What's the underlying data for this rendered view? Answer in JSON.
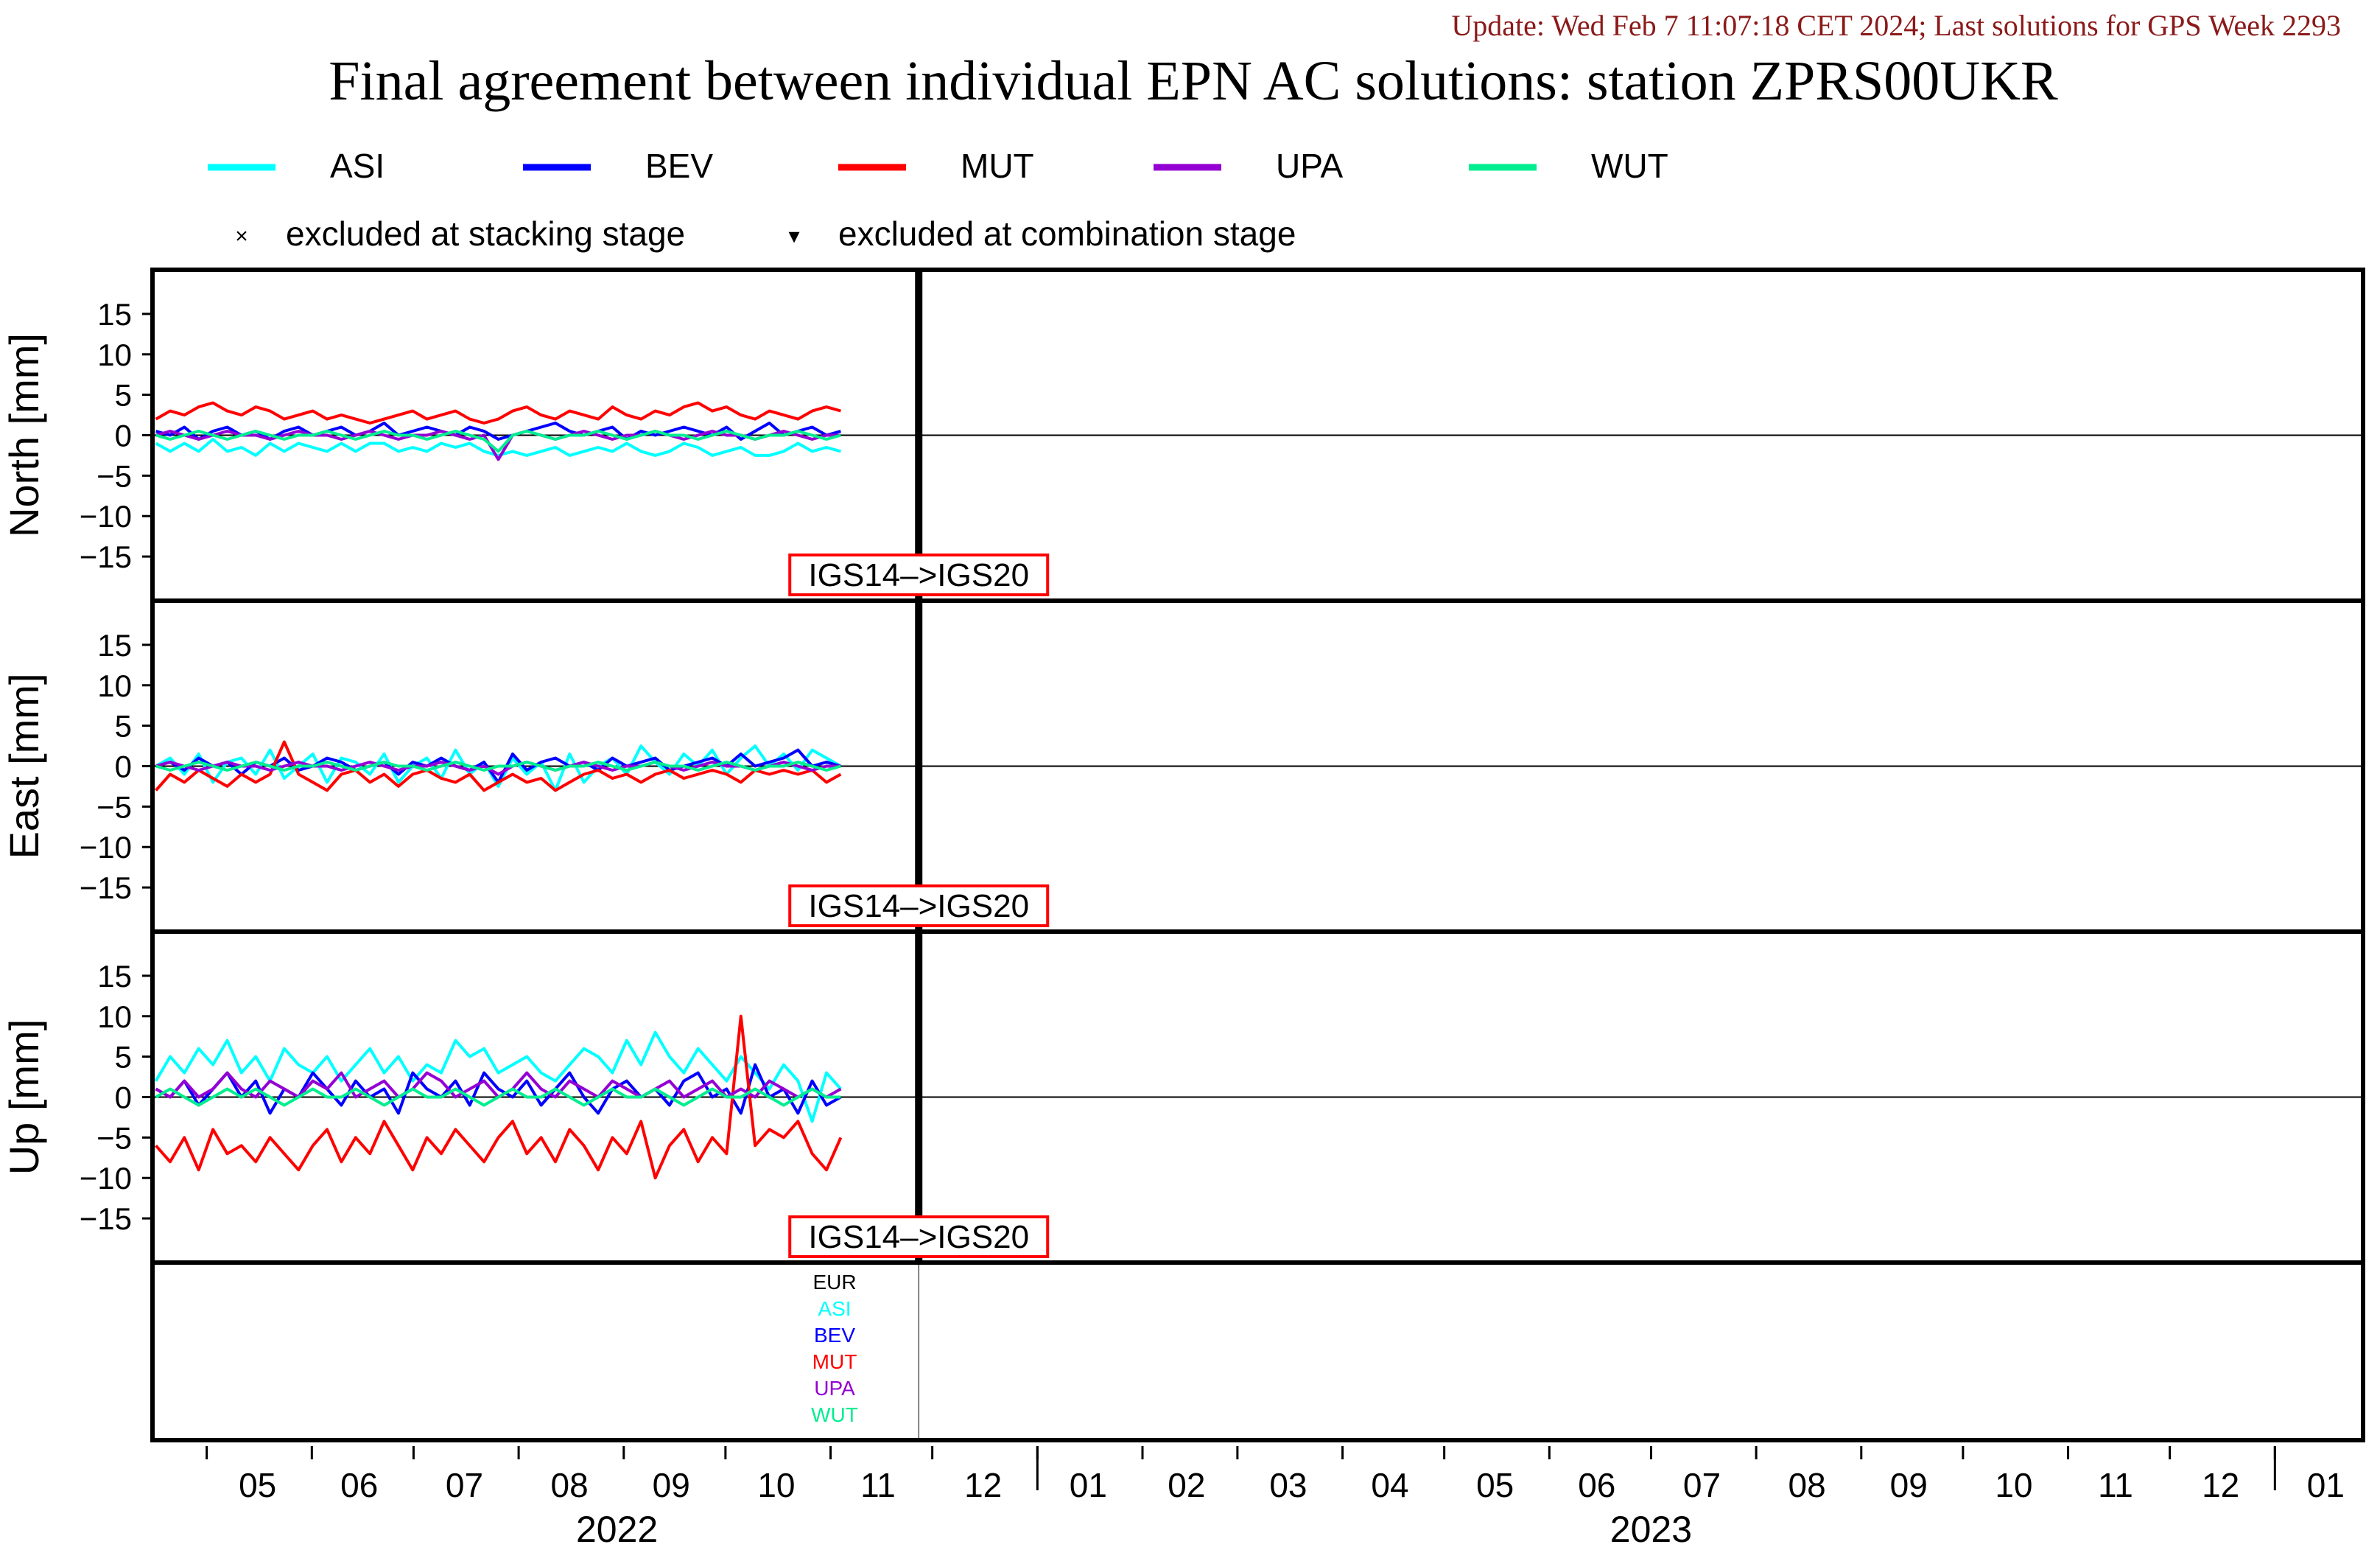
{
  "update_text": "Update: Wed Feb  7 11:07:18 CET 2024; Last solutions for GPS Week 2293",
  "colors": {
    "update": "#8b1a1a",
    "ASI": "#00ffff",
    "BEV": "#0000ff",
    "MUT": "#ff0000",
    "UPA": "#9400d3",
    "WUT": "#00ee90",
    "EUR": "#000000",
    "frame_box": "#ff0000"
  },
  "chart_data": {
    "type": "line",
    "title": "Final agreement between individual EPN AC solutions: station ZPRS00UKR",
    "legend": {
      "placement": "top",
      "series": [
        "ASI",
        "BEV",
        "MUT",
        "UPA",
        "WUT"
      ],
      "markers": [
        {
          "symbol": "×",
          "label": "excluded at stacking stage"
        },
        {
          "symbol": "▾",
          "label": "excluded at combination stage"
        }
      ]
    },
    "x_axis": {
      "type": "time",
      "range": [
        "2022-04-15",
        "2024-01-27"
      ],
      "month_labels": [
        {
          "date": "2022-05-16",
          "label": "05"
        },
        {
          "date": "2022-06-15",
          "label": "06"
        },
        {
          "date": "2022-07-16",
          "label": "07"
        },
        {
          "date": "2022-08-16",
          "label": "08"
        },
        {
          "date": "2022-09-15",
          "label": "09"
        },
        {
          "date": "2022-10-16",
          "label": "10"
        },
        {
          "date": "2022-11-15",
          "label": "11"
        },
        {
          "date": "2022-12-16",
          "label": "12"
        },
        {
          "date": "2023-01-16",
          "label": "01"
        },
        {
          "date": "2023-02-14",
          "label": "02"
        },
        {
          "date": "2023-03-16",
          "label": "03"
        },
        {
          "date": "2023-04-15",
          "label": "04"
        },
        {
          "date": "2023-05-16",
          "label": "05"
        },
        {
          "date": "2023-06-15",
          "label": "06"
        },
        {
          "date": "2023-07-16",
          "label": "07"
        },
        {
          "date": "2023-08-16",
          "label": "08"
        },
        {
          "date": "2023-09-15",
          "label": "09"
        },
        {
          "date": "2023-10-16",
          "label": "10"
        },
        {
          "date": "2023-11-15",
          "label": "11"
        },
        {
          "date": "2023-12-16",
          "label": "12"
        },
        {
          "date": "2024-01-16",
          "label": "01"
        }
      ],
      "year_labels": [
        {
          "date": "2022-08-30",
          "label": "2022"
        },
        {
          "date": "2023-07-01",
          "label": "2023"
        }
      ],
      "year_boundaries": [
        "2023-01-01",
        "2024-01-01"
      ]
    },
    "reference_frame_change": {
      "date": "2022-11-27",
      "label": "IGS14–>IGS20"
    },
    "series_dates": [
      "2022-04-16",
      "2022-11-04"
    ],
    "panels": [
      {
        "ylabel": "North [mm]",
        "ylim": [
          -19,
          19
        ],
        "yticks": [
          15,
          10,
          5,
          0,
          -5,
          -10,
          -15
        ],
        "series": [
          {
            "name": "ASI",
            "values": [
              -1,
              -2,
              -1,
              -2,
              -0.5,
              -2,
              -1.5,
              -2.5,
              -1,
              -2,
              -1,
              -1.5,
              -2,
              -1,
              -2,
              -1,
              -1,
              -2,
              -1.5,
              -2,
              -1,
              -1.5,
              -1,
              -2,
              -2.5,
              -2,
              -2.5,
              -2,
              -1.5,
              -2.5,
              -2,
              -1.5,
              -2,
              -1,
              -2,
              -2.5,
              -2,
              -1,
              -1.5,
              -2.5,
              -2,
              -1.5,
              -2.5,
              -2.5,
              -2,
              -1,
              -2,
              -1.5,
              -2
            ]
          },
          {
            "name": "BEV",
            "values": [
              0.5,
              0,
              1,
              -0.5,
              0.5,
              1,
              0,
              0.5,
              -0.5,
              0.5,
              1,
              0,
              0.5,
              1,
              0,
              0.5,
              1.5,
              0,
              0.5,
              1,
              0.5,
              0,
              1,
              0.5,
              -0.5,
              0,
              0.5,
              1,
              1.5,
              0.5,
              0,
              0.5,
              1,
              -0.5,
              0.5,
              0,
              0.5,
              1,
              0.5,
              0,
              1,
              -0.5,
              0.5,
              1.5,
              0,
              0.5,
              1,
              0,
              0.5
            ]
          },
          {
            "name": "MUT",
            "values": [
              2,
              3,
              2.5,
              3.5,
              4,
              3,
              2.5,
              3.5,
              3,
              2,
              2.5,
              3,
              2,
              2.5,
              2,
              1.5,
              2,
              2.5,
              3,
              2,
              2.5,
              3,
              2,
              1.5,
              2,
              3,
              3.5,
              2.5,
              2,
              3,
              2.5,
              2,
              3.5,
              2.5,
              2,
              3,
              2.5,
              3.5,
              4,
              3,
              3.5,
              2.5,
              2,
              3,
              2.5,
              2,
              3,
              3.5,
              3
            ]
          },
          {
            "name": "UPA",
            "values": [
              0,
              0.5,
              0,
              -0.5,
              0,
              0.5,
              0,
              0,
              -0.5,
              0,
              0.5,
              0,
              0,
              -0.5,
              0,
              0.5,
              0,
              -0.5,
              0,
              0,
              0.5,
              0,
              -0.5,
              0,
              -3,
              0,
              0.5,
              0,
              -0.5,
              0,
              0.5,
              0,
              -0.5,
              0,
              0,
              0.5,
              0,
              -0.5,
              0,
              0.5,
              0,
              0,
              -0.5,
              0,
              0.5,
              0,
              -0.5,
              0,
              0
            ]
          },
          {
            "name": "WUT",
            "values": [
              0,
              -0.5,
              0,
              0.5,
              0,
              -0.5,
              0,
              0.5,
              0,
              -0.5,
              0,
              0,
              0.5,
              0,
              -0.5,
              0,
              0.5,
              0,
              0,
              -0.5,
              0,
              0.5,
              0,
              -0.5,
              -2,
              0,
              0.5,
              0,
              -0.5,
              0,
              0,
              0.5,
              0,
              -0.5,
              0,
              0.5,
              0,
              0,
              -0.5,
              0,
              0.5,
              0,
              -0.5,
              0,
              0,
              0.5,
              0,
              -0.5,
              0
            ]
          }
        ]
      },
      {
        "ylabel": "East [mm]",
        "ylim": [
          -19,
          19
        ],
        "yticks": [
          15,
          10,
          5,
          0,
          -5,
          -10,
          -15
        ],
        "series": [
          {
            "name": "ASI",
            "values": [
              0,
              1,
              -1,
              1.5,
              -2,
              0.5,
              1,
              -1,
              2,
              -1.5,
              0,
              1.5,
              -2,
              1,
              0.5,
              -1,
              1.5,
              -2,
              0,
              1,
              -1.5,
              2,
              -1,
              0.5,
              -2.5,
              1,
              -1,
              0.5,
              -3,
              1.5,
              -2,
              0,
              1,
              -1,
              2.5,
              0.5,
              -1,
              1.5,
              0,
              2,
              -1,
              1,
              2.5,
              0,
              1.5,
              -0.5,
              2,
              1,
              0
            ]
          },
          {
            "name": "BEV",
            "values": [
              0,
              0.5,
              -0.5,
              1,
              0,
              0.5,
              -1,
              0.5,
              0,
              1,
              -0.5,
              0,
              1,
              0.5,
              -0.5,
              0,
              0.5,
              -1,
              0.5,
              0,
              1,
              0,
              -0.5,
              0.5,
              -2,
              1.5,
              -0.5,
              0.5,
              1,
              0,
              0.5,
              -0.5,
              1,
              0,
              0.5,
              1,
              -0.5,
              0,
              0.5,
              1,
              0,
              1.5,
              0,
              0.5,
              1,
              2,
              0,
              0.5,
              0
            ]
          },
          {
            "name": "MUT",
            "values": [
              -3,
              -1,
              -2,
              -0.5,
              -1.5,
              -2.5,
              -1,
              -2,
              -1,
              3,
              -1,
              -2,
              -3,
              -1,
              -0.5,
              -2,
              -1,
              -2.5,
              -1,
              -0.5,
              -1.5,
              -2,
              -1,
              -3,
              -2,
              -1,
              -2,
              -1.5,
              -3,
              -2,
              -1,
              -0.5,
              -1.5,
              -1,
              -2,
              -1,
              -0.5,
              -1.5,
              -1,
              -0.5,
              -1,
              -2,
              -0.5,
              -1,
              -0.5,
              -1,
              -0.5,
              -2,
              -1
            ]
          },
          {
            "name": "UPA",
            "values": [
              0,
              0.5,
              0,
              -0.5,
              0,
              0.5,
              0,
              0,
              -0.5,
              0,
              0.5,
              0,
              0,
              -0.5,
              0,
              0.5,
              0,
              -0.5,
              0,
              0,
              0.5,
              0,
              -0.5,
              0,
              -1,
              0,
              0.5,
              0,
              -0.5,
              0,
              0.5,
              0,
              -0.5,
              0,
              0,
              0.5,
              0,
              -0.5,
              0,
              0.5,
              0,
              0,
              -0.5,
              0,
              0.5,
              0,
              -0.5,
              0,
              0
            ]
          },
          {
            "name": "WUT",
            "values": [
              0,
              -0.5,
              0,
              0.5,
              0,
              -0.5,
              0,
              0.5,
              0,
              -0.5,
              0,
              0,
              0.5,
              0,
              -0.5,
              0,
              0.5,
              0,
              0,
              -0.5,
              0,
              0.5,
              0,
              -0.5,
              0,
              0,
              0.5,
              0,
              -0.5,
              0,
              0,
              0.5,
              0,
              -0.5,
              0,
              0.5,
              0,
              0,
              -0.5,
              0,
              0.5,
              0,
              -0.5,
              0,
              0,
              0.5,
              0,
              -0.5,
              0
            ]
          }
        ]
      },
      {
        "ylabel": "Up [mm]",
        "ylim": [
          -19,
          19
        ],
        "yticks": [
          15,
          10,
          5,
          0,
          -5,
          -10,
          -15
        ],
        "series": [
          {
            "name": "ASI",
            "values": [
              2,
              5,
              3,
              6,
              4,
              7,
              3,
              5,
              2,
              6,
              4,
              3,
              5,
              2,
              4,
              6,
              3,
              5,
              2,
              4,
              3,
              7,
              5,
              6,
              3,
              4,
              5,
              3,
              2,
              4,
              6,
              5,
              3,
              7,
              4,
              8,
              5,
              3,
              6,
              4,
              2,
              5,
              3,
              1,
              4,
              2,
              -3,
              3,
              1
            ]
          },
          {
            "name": "BEV",
            "values": [
              1,
              0,
              2,
              -1,
              1,
              3,
              0,
              2,
              -2,
              1,
              0,
              3,
              1,
              -1,
              2,
              0,
              1,
              -2,
              3,
              1,
              0,
              2,
              -1,
              3,
              1,
              0,
              2,
              -1,
              1,
              3,
              0,
              -2,
              1,
              2,
              0,
              1,
              -1,
              2,
              3,
              0,
              1,
              -2,
              4,
              0,
              1,
              -2,
              2,
              -1,
              0
            ]
          },
          {
            "name": "MUT",
            "values": [
              -6,
              -8,
              -5,
              -9,
              -4,
              -7,
              -6,
              -8,
              -5,
              -7,
              -9,
              -6,
              -4,
              -8,
              -5,
              -7,
              -3,
              -6,
              -9,
              -5,
              -7,
              -4,
              -6,
              -8,
              -5,
              -3,
              -7,
              -5,
              -8,
              -4,
              -6,
              -9,
              -5,
              -7,
              -3,
              -10,
              -6,
              -4,
              -8,
              -5,
              -7,
              10,
              -6,
              -4,
              -5,
              -3,
              -7,
              -9,
              -5
            ]
          },
          {
            "name": "UPA",
            "values": [
              1,
              0,
              2,
              0,
              1,
              3,
              1,
              0,
              2,
              1,
              0,
              2,
              1,
              3,
              0,
              1,
              2,
              0,
              1,
              3,
              2,
              0,
              1,
              2,
              0,
              1,
              3,
              1,
              0,
              2,
              1,
              0,
              2,
              1,
              0,
              1,
              2,
              0,
              1,
              2,
              0,
              1,
              0,
              2,
              1,
              0,
              1,
              0,
              1
            ]
          },
          {
            "name": "WUT",
            "values": [
              0,
              1,
              0,
              -1,
              0,
              1,
              0,
              1,
              0,
              -1,
              0,
              1,
              0,
              0,
              1,
              0,
              -1,
              0,
              1,
              0,
              0,
              1,
              0,
              -1,
              0,
              1,
              0,
              0,
              1,
              0,
              -1,
              0,
              1,
              0,
              0,
              1,
              0,
              -1,
              0,
              1,
              0,
              0,
              1,
              0,
              -1,
              0,
              1,
              0,
              0
            ]
          }
        ]
      }
    ],
    "solution_list": [
      "EUR",
      "ASI",
      "BEV",
      "MUT",
      "UPA",
      "WUT"
    ]
  }
}
